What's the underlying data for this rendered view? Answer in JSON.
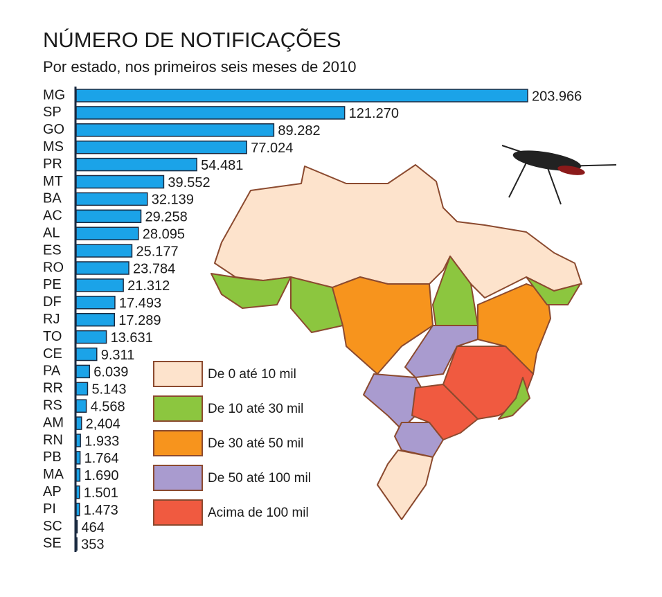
{
  "chart_data": {
    "type": "bar",
    "orientation": "horizontal",
    "title": "NÚMERO DE NOTIFICAÇÕES",
    "subtitle": "Por estado, nos primeiros seis meses de 2010",
    "categories": [
      "MG",
      "SP",
      "GO",
      "MS",
      "PR",
      "MT",
      "BA",
      "AC",
      "AL",
      "ES",
      "RO",
      "PE",
      "DF",
      "RJ",
      "TO",
      "CE",
      "PA",
      "RR",
      "RS",
      "AM",
      "RN",
      "PB",
      "MA",
      "AP",
      "PI",
      "SC",
      "SE"
    ],
    "values": [
      203966,
      121270,
      89282,
      77024,
      54481,
      39552,
      32139,
      29258,
      28095,
      25177,
      23784,
      21312,
      17493,
      17289,
      13631,
      9311,
      6039,
      5143,
      4568,
      2404,
      1933,
      1764,
      1690,
      1501,
      1473,
      464,
      353
    ],
    "value_labels": [
      "203.966",
      "121.270",
      "89.282",
      "77.024",
      "54.481",
      "39.552",
      "32.139",
      "29.258",
      "28.095",
      "25.177",
      "23.784",
      "21.312",
      "17.493",
      "17.289",
      "13.631",
      "9.311",
      "6.039",
      "5.143",
      "4.568",
      "2,404",
      "1.933",
      "1.764",
      "1.690",
      "1.501",
      "1.473",
      "464",
      "353"
    ],
    "color": "#1ba3e8"
  },
  "map_legend": [
    {
      "label": "De 0 até 10 mil",
      "color": "#fde3cc"
    },
    {
      "label": "De 10 até 30 mil",
      "color": "#8cc63f"
    },
    {
      "label": "De 30 até 50 mil",
      "color": "#f7941d"
    },
    {
      "label": "De 50 até 100 mil",
      "color": "#a99bcf"
    },
    {
      "label": "Acima de 100 mil",
      "color": "#f05a40"
    }
  ]
}
